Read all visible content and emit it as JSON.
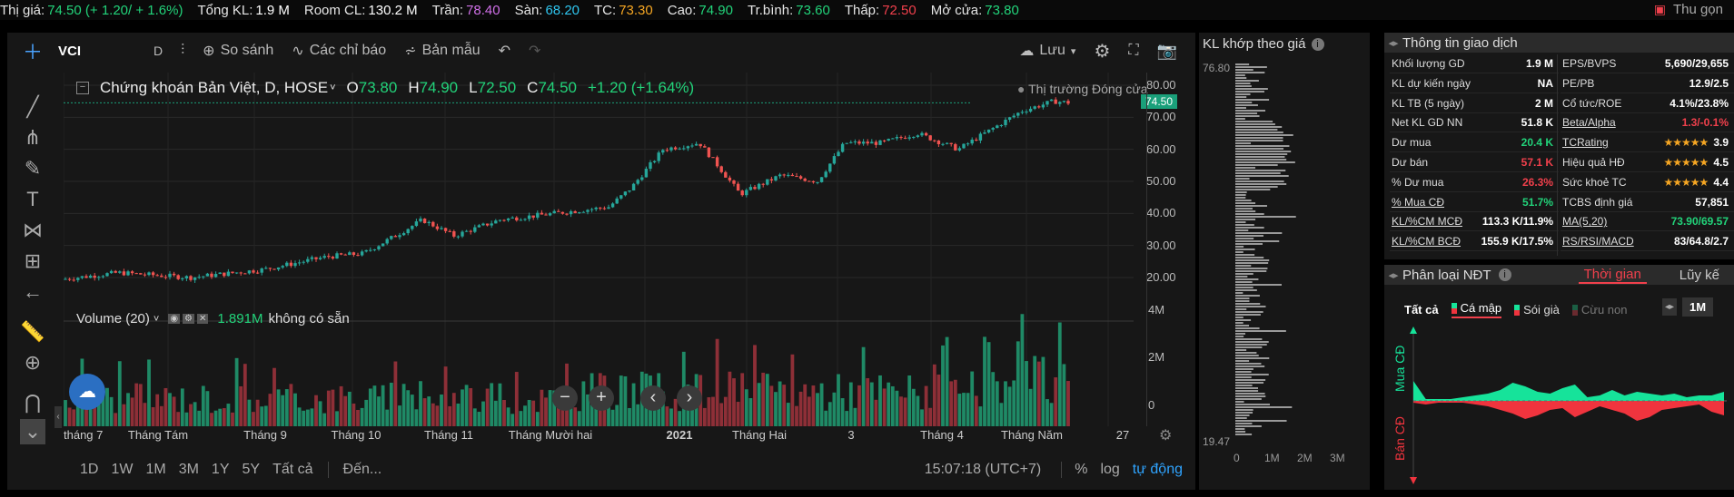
{
  "ticker": [
    {
      "label": "Thị giá:",
      "value": "74.50 (+ 1.20/ + 1.6%)",
      "color": "green"
    },
    {
      "label": "Tổng KL:",
      "value": "1.9 M",
      "color": "white"
    },
    {
      "label": "Room CL:",
      "value": "130.2 M",
      "color": "white"
    },
    {
      "label": "Trần:",
      "value": "78.40",
      "color": "purple"
    },
    {
      "label": "Sàn:",
      "value": "68.20",
      "color": "cyan"
    },
    {
      "label": "TC:",
      "value": "73.30",
      "color": "orange"
    },
    {
      "label": "Cao:",
      "value": "74.90",
      "color": "green"
    },
    {
      "label": "Tr.bình:",
      "value": "73.60",
      "color": "green"
    },
    {
      "label": "Thấp:",
      "value": "72.50",
      "color": "red"
    },
    {
      "label": "Mở cửa:",
      "value": "73.80",
      "color": "green"
    }
  ],
  "collapse_label": "Thu gọn",
  "toolbar": {
    "symbol": "VCI",
    "interval": "D",
    "compare": "So sánh",
    "indicators": "Các chỉ báo",
    "templates": "Bản mẫu",
    "save": "Lưu"
  },
  "legend": {
    "title": "Chứng khoán Bản Việt, D, HOSE",
    "o_label": "O",
    "o": "73.80",
    "h_label": "H",
    "h": "74.90",
    "l_label": "L",
    "l": "72.50",
    "c_label": "C",
    "c": "74.50",
    "change": "+1.20 (+1.64%)"
  },
  "market_status": "Thị trường Đóng cửa",
  "volume_legend": {
    "name": "Volume (20)",
    "value": "1.891M",
    "note": "không có sẵn"
  },
  "price_axis": [
    "80.00",
    "70.00",
    "60.00",
    "50.00",
    "40.00",
    "30.00",
    "20.00"
  ],
  "last_price": "74.50",
  "volume_axis": [
    "4M",
    "2M",
    "0"
  ],
  "x_labels": [
    "tháng 7",
    "Tháng Tám",
    "Tháng 9",
    "Tháng 10",
    "Tháng 11",
    "Tháng Mười hai",
    "2021",
    "Tháng Hai",
    "3",
    "Tháng 4",
    "Tháng Năm",
    "27"
  ],
  "ranges": [
    "1D",
    "1W",
    "1M",
    "3M",
    "1Y",
    "5Y",
    "Tất cả"
  ],
  "goto": "Đến...",
  "clock": "15:07:18 (UTC+7)",
  "scale_opts": [
    "%",
    "log",
    "tự động"
  ],
  "vp": {
    "title": "KL khớp theo giá",
    "top": "76.80",
    "bottom": "19.47",
    "x_ticks": [
      "0",
      "1M",
      "2M",
      "3M"
    ]
  },
  "info": {
    "title": "Thông tin giao dịch",
    "left": [
      {
        "label": "Khối lượng GD",
        "value": "1.9 M",
        "color": "white"
      },
      {
        "label": "KL dự kiến ngày",
        "value": "NA",
        "color": "white"
      },
      {
        "label": "KL TB (5 ngày)",
        "value": "2 M",
        "color": "white"
      },
      {
        "label": "Net KL GD NN",
        "value": "51.8 K",
        "color": "white"
      },
      {
        "label": "Dư mua",
        "value": "20.4 K",
        "color": "green"
      },
      {
        "label": "Dư bán",
        "value": "57.1 K",
        "color": "red"
      },
      {
        "label": "% Dư mua",
        "value": "26.3%",
        "color": "red"
      },
      {
        "label": "% Mua CĐ",
        "value": "51.7%",
        "color": "green"
      },
      {
        "label": "KL/%CM MCĐ",
        "value": "113.3 K/11.9%",
        "color": "white"
      },
      {
        "label": "KL/%CM BCĐ",
        "value": "155.9 K/17.5%",
        "color": "white"
      }
    ],
    "right": [
      {
        "label": "EPS/BVPS",
        "value": "5,690/29,655",
        "color": "white"
      },
      {
        "label": "PE/PB",
        "value": "12.9/2.5",
        "color": "white"
      },
      {
        "label": "Cổ tức/ROE",
        "value": "4.1%/23.8%",
        "color": "white"
      },
      {
        "label": "Beta/Alpha",
        "value": "1.3/-0.1%",
        "color": "red"
      },
      {
        "label": "TCRating",
        "value": "3.9",
        "stars": "★★★★★",
        "color": "white"
      },
      {
        "label": "Hiệu quả HĐ",
        "value": "4.5",
        "stars": "★★★★★",
        "color": "white"
      },
      {
        "label": "Sức khoẻ TC",
        "value": "4.4",
        "stars": "★★★★★",
        "color": "white"
      },
      {
        "label": "TCBS định giá",
        "value": "57,851",
        "color": "white"
      },
      {
        "label": "MA(5,20)",
        "value": "73.90/69.57",
        "color": "green"
      },
      {
        "label": "RS/RSI/MACD",
        "value": "83/64.8/2.7",
        "color": "white"
      }
    ]
  },
  "ndt": {
    "title": "Phân loại NĐT",
    "tab_time": "Thời gian",
    "tab_cum": "Lũy kế",
    "filters": [
      "Tất cả",
      "Cá mập",
      "Sói già",
      "Cừu non"
    ],
    "period": "1M",
    "buy_label": "Mua CĐ",
    "sell_label": "Bán CĐ"
  },
  "colors": {
    "up": "#26a69a",
    "down": "#ef5350",
    "upBar": "#1f8a66",
    "downBar": "#8e2f37",
    "buyArea": "#16e39a",
    "sellArea": "#f0343e"
  }
}
